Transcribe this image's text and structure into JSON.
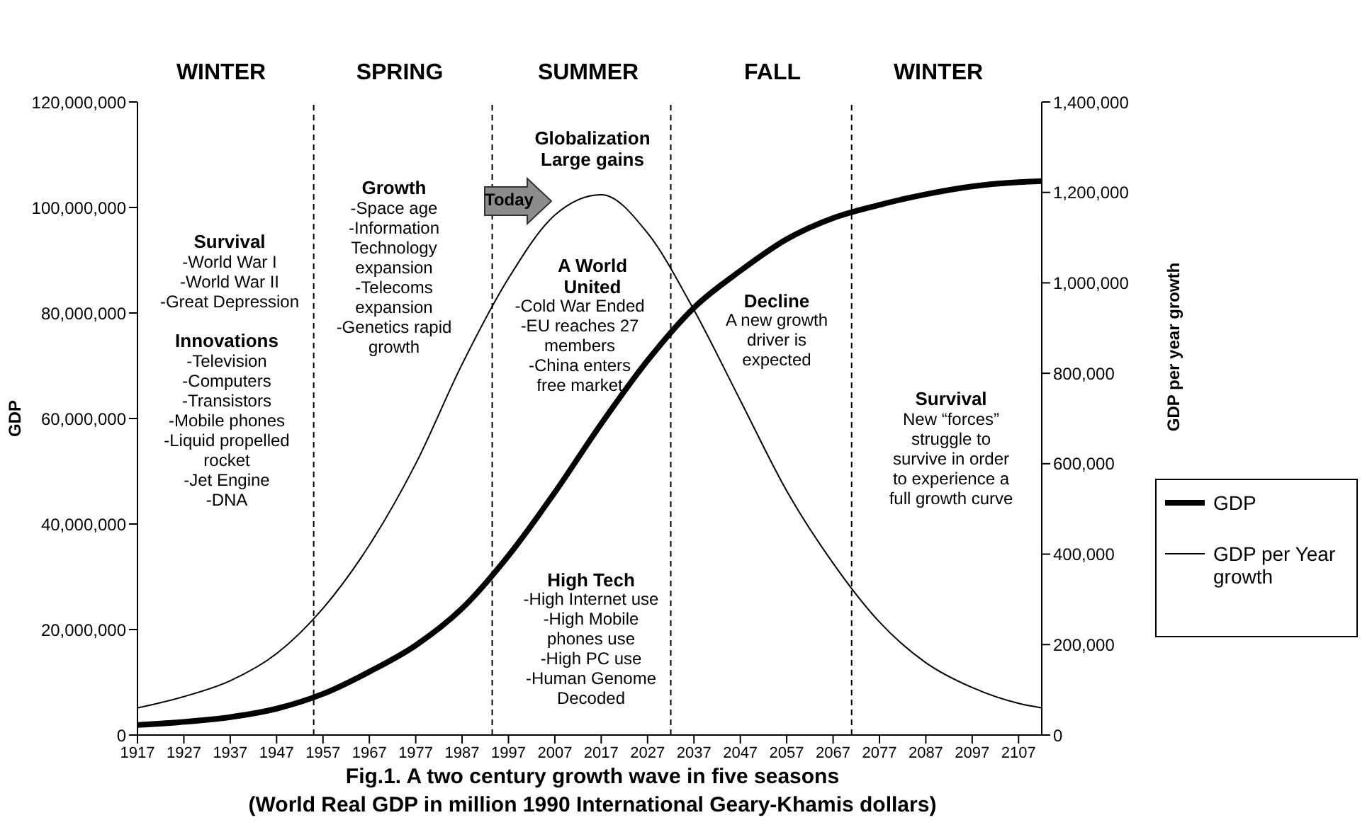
{
  "chart_data": {
    "type": "line",
    "title": "Fig.1. A two century growth wave in five seasons",
    "subtitle": "(World Real GDP in million 1990 International Geary-Khamis dollars)",
    "ylabel": "GDP",
    "y2label": "GDP per year growth",
    "x": [
      1917,
      1927,
      1937,
      1947,
      1957,
      1967,
      1977,
      1987,
      1997,
      2007,
      2017,
      2027,
      2037,
      2047,
      2057,
      2067,
      2077,
      2087,
      2097,
      2107,
      2112
    ],
    "series": [
      {
        "name": "GDP",
        "color": "#000000",
        "values": [
          1900000,
          2500000,
          3400000,
          5000000,
          7800000,
          12000000,
          17000000,
          24000000,
          34000000,
          46000000,
          59000000,
          71000000,
          81000000,
          88000000,
          94000000,
          98000000,
          100500000,
          102500000,
          104000000,
          104800000,
          105000000
        ]
      },
      {
        "name": "GDP per Year growth",
        "color": "#000000",
        "axis": "y2",
        "values": [
          60000,
          85000,
          120000,
          180000,
          280000,
          420000,
          600000,
          820000,
          1010000,
          1150000,
          1195000,
          1110000,
          940000,
          740000,
          540000,
          380000,
          250000,
          160000,
          105000,
          70000,
          60000
        ]
      }
    ],
    "xlim": [
      1917,
      2112
    ],
    "xticks": [
      1917,
      1927,
      1937,
      1947,
      1957,
      1967,
      1977,
      1987,
      1997,
      2007,
      2017,
      2027,
      2037,
      2047,
      2057,
      2067,
      2077,
      2087,
      2097,
      2107
    ],
    "ylim": [
      0,
      120000000
    ],
    "yticks": [
      {
        "value": 0,
        "label": "0"
      },
      {
        "value": 20000000,
        "label": "20,000,000"
      },
      {
        "value": 40000000,
        "label": "40,000,000"
      },
      {
        "value": 60000000,
        "label": "60,000,000"
      },
      {
        "value": 80000000,
        "label": "80,000,000"
      },
      {
        "value": 100000000,
        "label": "100,000,000"
      },
      {
        "value": 120000000,
        "label": "120,000,000"
      }
    ],
    "y2lim": [
      0,
      1400000
    ],
    "y2ticks": [
      {
        "value": 0,
        "label": "0"
      },
      {
        "value": 200000,
        "label": "200,000"
      },
      {
        "value": 400000,
        "label": "400,000"
      },
      {
        "value": 600000,
        "label": "600,000"
      },
      {
        "value": 800000,
        "label": "800,000"
      },
      {
        "value": 1000000,
        "label": "1,000,000"
      },
      {
        "value": 1200000,
        "label": "1,200,000"
      },
      {
        "value": 1400000,
        "label": "1,400,000"
      }
    ],
    "ref_lines": [
      {
        "axis": "x",
        "value": 1955,
        "line_style": "dashed"
      },
      {
        "axis": "x",
        "value": 1993.5,
        "line_style": "dashed"
      },
      {
        "axis": "x",
        "value": 2032,
        "line_style": "dashed"
      },
      {
        "axis": "x",
        "value": 2071,
        "line_style": "dashed"
      }
    ],
    "annotations": [
      "WINTER",
      "SPRING",
      "SUMMER",
      "FALL",
      "WINTER",
      "Survival",
      "-World War I\n-World War II\n-Great Depression",
      "Innovations",
      "-Television\n-Computers\n-Transistors\n-Mobile phones\n-Liquid propelled\nrocket\n-Jet Engine\n-DNA",
      "Growth",
      "-Space age\n-Information\nTechnology\nexpansion\n-Telecoms\nexpansion\n-Genetics rapid\ngrowth",
      "Globalization\nLarge gains",
      "A World\nUnited",
      "-Cold War Ended\n-EU reaches 27\nmembers\n-China enters\nfree market",
      "Decline",
      "A new growth\ndriver is\nexpected",
      "Survival",
      "New “forces”\nstruggle to\nsurvive in order\nto experience a\nfull growth curve",
      "High Tech",
      "-High Internet use\n-High Mobile\nphones use\n-High PC use\n-Human Genome\nDecoded",
      "Today"
    ],
    "legend": "right",
    "marker": "none",
    "line_style": "solid"
  }
}
